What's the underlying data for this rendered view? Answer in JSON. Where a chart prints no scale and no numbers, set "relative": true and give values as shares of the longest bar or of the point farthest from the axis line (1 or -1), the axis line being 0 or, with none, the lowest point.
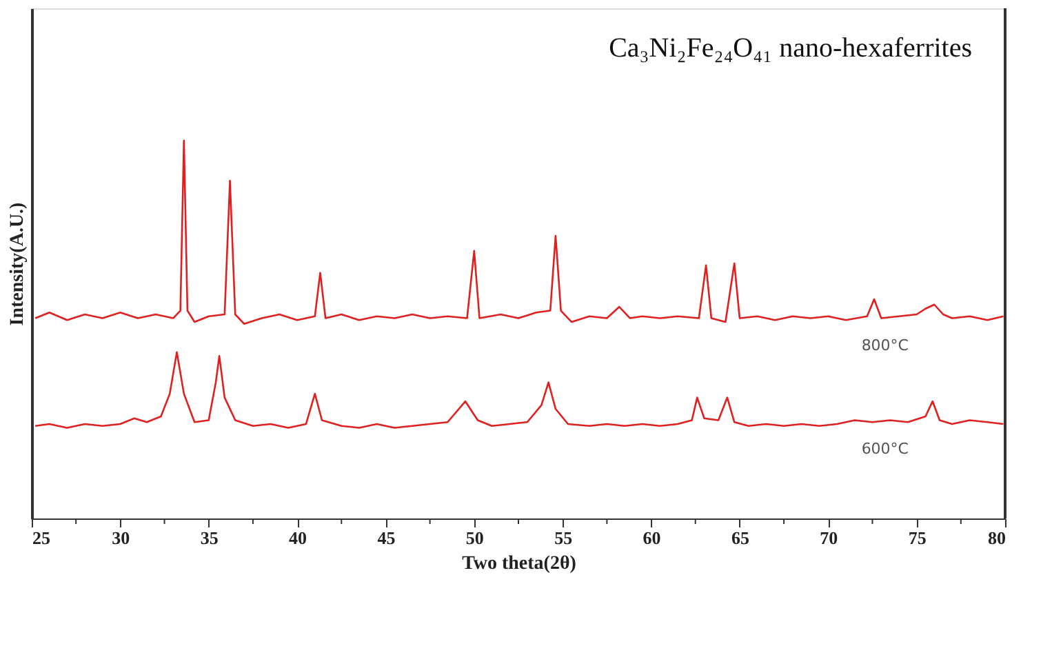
{
  "chart_data": {
    "type": "line",
    "title": "Ca₃Ni₂Fe₂₄O₄₁ nano-hexaferrites",
    "xlabel": "Two theta(2θ)",
    "ylabel": "Intensity(A.U.)",
    "relative": true,
    "grid": false,
    "xlim": [
      25,
      80
    ],
    "xticks": [
      25,
      {
        "value": 27.5,
        "label": null
      },
      30,
      {
        "value": 32.5,
        "label": null
      },
      35,
      {
        "value": 37.5,
        "label": null
      },
      40,
      {
        "value": 42.5,
        "label": null
      },
      45,
      {
        "value": 47.5,
        "label": null
      },
      50,
      {
        "value": 52.5,
        "label": null
      },
      55,
      {
        "value": 57.5,
        "label": null
      },
      60,
      {
        "value": 62.5,
        "label": null
      },
      65,
      {
        "value": 67.5,
        "label": null
      },
      70,
      {
        "value": 72.5,
        "label": null
      },
      75,
      {
        "value": 77.5,
        "label": null
      },
      80
    ],
    "series": [
      {
        "name": "800°C",
        "color": "#e0201f",
        "x": [
          25.2,
          26,
          27,
          28,
          29,
          30,
          31,
          32,
          33.0,
          33.4,
          33.6,
          33.8,
          34.2,
          35,
          35.9,
          36.2,
          36.5,
          37,
          38,
          39,
          40,
          41.0,
          41.3,
          41.6,
          42.5,
          43.5,
          44.5,
          45.5,
          46.5,
          47.5,
          48.5,
          49.6,
          50.0,
          50.3,
          51.5,
          52.5,
          53.5,
          54.3,
          54.6,
          54.9,
          55.5,
          56.5,
          57.5,
          58.2,
          58.8,
          59.5,
          60.5,
          61.5,
          62.7,
          63.1,
          63.4,
          64.2,
          64.7,
          65.0,
          66,
          67,
          68,
          69,
          70,
          71,
          72.2,
          72.6,
          73,
          74,
          75,
          75.5,
          76,
          76.5,
          77,
          78,
          79,
          79.9
        ],
        "values": [
          0.53,
          0.545,
          0.525,
          0.54,
          0.53,
          0.545,
          0.53,
          0.54,
          0.53,
          0.55,
          1.0,
          0.55,
          0.52,
          0.535,
          0.54,
          0.894,
          0.54,
          0.515,
          0.53,
          0.54,
          0.525,
          0.535,
          0.65,
          0.53,
          0.54,
          0.525,
          0.535,
          0.53,
          0.54,
          0.53,
          0.535,
          0.53,
          0.708,
          0.53,
          0.54,
          0.53,
          0.545,
          0.55,
          0.748,
          0.55,
          0.52,
          0.535,
          0.53,
          0.56,
          0.53,
          0.535,
          0.53,
          0.535,
          0.53,
          0.67,
          0.53,
          0.52,
          0.675,
          0.53,
          0.535,
          0.525,
          0.535,
          0.53,
          0.535,
          0.525,
          0.535,
          0.58,
          0.53,
          0.535,
          0.54,
          0.555,
          0.566,
          0.54,
          0.53,
          0.535,
          0.525,
          0.535
        ]
      },
      {
        "name": "600°C",
        "color": "#e0201f",
        "x": [
          25.2,
          26,
          27,
          28,
          29,
          30,
          30.8,
          31.5,
          32.3,
          32.8,
          33.2,
          33.6,
          34.2,
          35.0,
          35.4,
          35.6,
          35.9,
          36.5,
          37.5,
          38.5,
          39.5,
          40.5,
          41.0,
          41.4,
          42.5,
          43.5,
          44.5,
          45.5,
          46.5,
          47.5,
          48.5,
          49.5,
          50.2,
          51,
          52,
          53,
          53.8,
          54.2,
          54.6,
          55.3,
          56.5,
          57.5,
          58.5,
          59.5,
          60.5,
          61.5,
          62.3,
          62.6,
          63,
          63.8,
          64.3,
          64.7,
          65.5,
          66.5,
          67.5,
          68.5,
          69.5,
          70.5,
          71.5,
          72.5,
          73.5,
          74.5,
          75.5,
          75.9,
          76.3,
          77,
          78,
          79,
          79.9
        ],
        "values": [
          0.245,
          0.25,
          0.24,
          0.25,
          0.245,
          0.25,
          0.265,
          0.255,
          0.27,
          0.33,
          0.44,
          0.33,
          0.255,
          0.26,
          0.36,
          0.43,
          0.32,
          0.26,
          0.245,
          0.25,
          0.24,
          0.25,
          0.33,
          0.26,
          0.245,
          0.24,
          0.25,
          0.24,
          0.245,
          0.25,
          0.255,
          0.31,
          0.26,
          0.245,
          0.25,
          0.255,
          0.3,
          0.36,
          0.29,
          0.25,
          0.245,
          0.25,
          0.245,
          0.25,
          0.245,
          0.25,
          0.26,
          0.32,
          0.265,
          0.26,
          0.32,
          0.255,
          0.245,
          0.25,
          0.245,
          0.25,
          0.245,
          0.25,
          0.26,
          0.255,
          0.26,
          0.255,
          0.27,
          0.31,
          0.26,
          0.25,
          0.26,
          0.255,
          0.25
        ]
      }
    ]
  }
}
